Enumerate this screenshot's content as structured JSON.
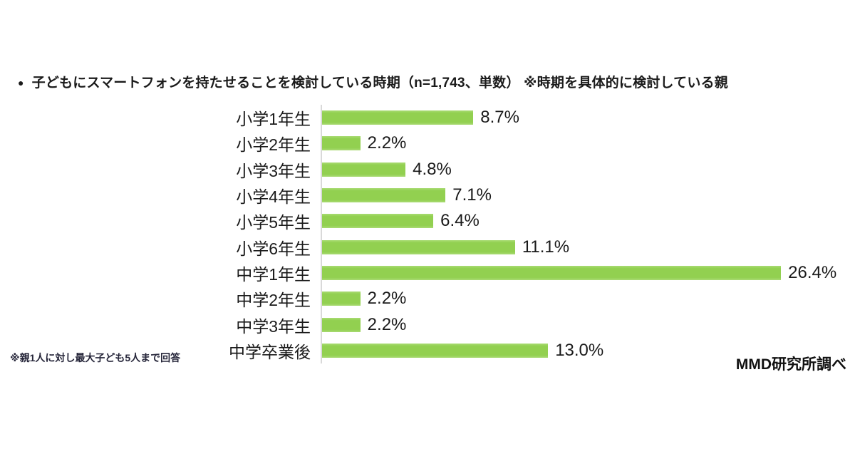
{
  "title": {
    "bullet": "●",
    "text": "子どもにスマートフォンを持たせることを検討している時期（n=1,743、単数） ※時期を具体的に検討している親"
  },
  "footnote": "※親1人に対し最大子ども5人まで回答",
  "source": "MMD研究所調べ",
  "colors": {
    "bar": "#92d050",
    "axis_line": "#d9d9d9",
    "text": "#1a1a1a"
  },
  "chart_data": {
    "type": "bar",
    "orientation": "horizontal",
    "title": "子どもにスマートフォンを持たせることを検討している時期（n=1,743、単数） ※時期を具体的に検討している親",
    "sample_size": "n=1,743",
    "categories": [
      "小学1年生",
      "小学2年生",
      "小学3年生",
      "小学4年生",
      "小学5年生",
      "小学6年生",
      "中学1年生",
      "中学2年生",
      "中学3年生",
      "中学卒業後"
    ],
    "values": [
      8.7,
      2.2,
      4.8,
      7.1,
      6.4,
      11.1,
      26.4,
      2.2,
      2.2,
      13.0
    ],
    "labels": [
      "8.7%",
      "2.2%",
      "4.8%",
      "7.1%",
      "6.4%",
      "11.1%",
      "26.4%",
      "2.2%",
      "2.2%",
      "13.0%"
    ],
    "xlabel": "",
    "ylabel": "",
    "xlim": [
      0,
      27.5
    ],
    "grid": false,
    "legend": "none",
    "value_labels": "outside-end"
  }
}
